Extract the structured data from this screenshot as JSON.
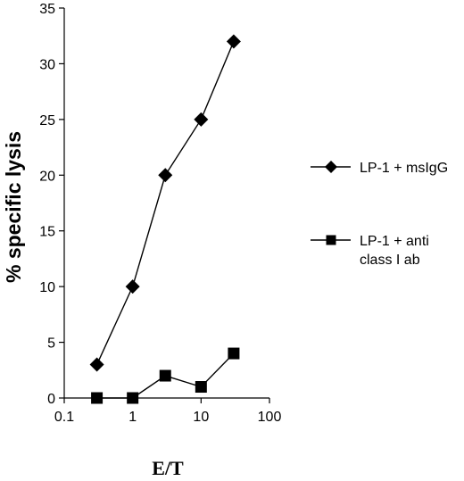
{
  "chart_data": {
    "type": "line",
    "xlabel": "E/T",
    "ylabel": "% specific lysis",
    "xscale": "log",
    "xlim": [
      0.1,
      100
    ],
    "ylim": [
      0,
      35
    ],
    "xticks": [
      0.1,
      1,
      10,
      100
    ],
    "xtick_labels": [
      "0.1",
      "1",
      "10",
      "100"
    ],
    "yticks": [
      0,
      5,
      10,
      15,
      20,
      25,
      30,
      35
    ],
    "ytick_labels": [
      "0",
      "5",
      "10",
      "15",
      "20",
      "25",
      "30",
      "35"
    ],
    "grid": false,
    "legend_position": "right",
    "series": [
      {
        "name": "LP-1 + msIgG",
        "marker": "diamond",
        "color": "#000000",
        "x": [
          0.3,
          1,
          3,
          10,
          30
        ],
        "y": [
          3,
          10,
          20,
          25,
          32
        ]
      },
      {
        "name": "LP-1 + anti class I ab",
        "name_lines": [
          "LP-1 + anti",
          "class I ab"
        ],
        "marker": "square",
        "color": "#000000",
        "x": [
          0.3,
          1,
          3,
          10,
          30
        ],
        "y": [
          0,
          0,
          2,
          1,
          4
        ]
      }
    ]
  }
}
